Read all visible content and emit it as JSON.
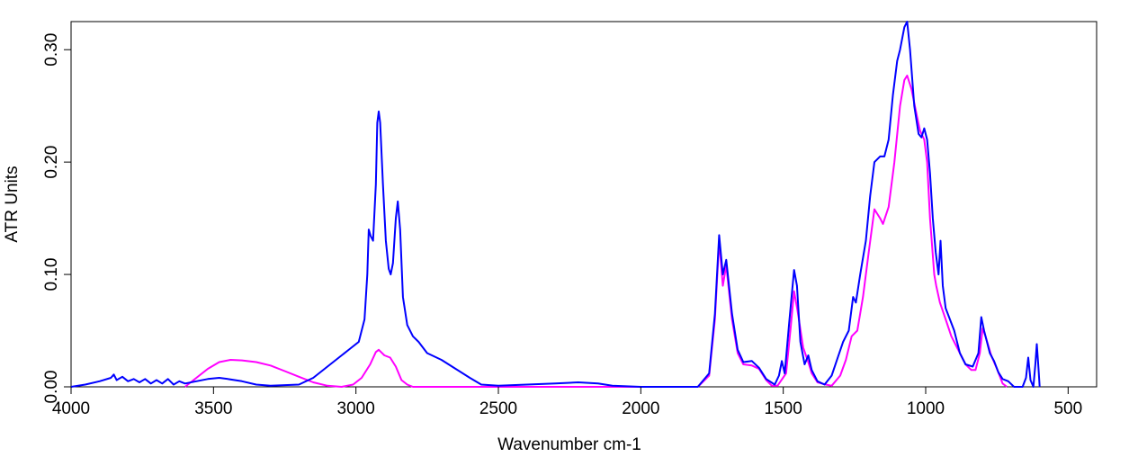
{
  "chart_data": {
    "type": "line",
    "title": "",
    "xlabel": "Wavenumber cm-1",
    "ylabel": "ATR Units",
    "xlim": [
      4000,
      400
    ],
    "ylim": [
      0.0,
      0.325
    ],
    "x_reversed": true,
    "grid": false,
    "xticks": [
      4000,
      3500,
      3000,
      2500,
      2000,
      1500,
      1000,
      500
    ],
    "xtick_labels": [
      "4000",
      "3500",
      "3000",
      "2500",
      "2000",
      "1500",
      "1000",
      "500"
    ],
    "yticks": [
      0.0,
      0.1,
      0.2,
      0.3
    ],
    "ytick_labels": [
      "0.00",
      "0.10",
      "0.20",
      "0.30"
    ],
    "series": [
      {
        "color": "#ff00ff",
        "points": [
          [
            3600,
            0.0
          ],
          [
            3560,
            0.008
          ],
          [
            3520,
            0.016
          ],
          [
            3480,
            0.022
          ],
          [
            3440,
            0.024
          ],
          [
            3400,
            0.0235
          ],
          [
            3350,
            0.022
          ],
          [
            3300,
            0.019
          ],
          [
            3250,
            0.014
          ],
          [
            3200,
            0.009
          ],
          [
            3150,
            0.004
          ],
          [
            3100,
            0.001
          ],
          [
            3050,
            0.0
          ],
          [
            3010,
            0.002
          ],
          [
            2980,
            0.008
          ],
          [
            2950,
            0.02
          ],
          [
            2930,
            0.031
          ],
          [
            2920,
            0.033
          ],
          [
            2900,
            0.028
          ],
          [
            2880,
            0.026
          ],
          [
            2860,
            0.018
          ],
          [
            2840,
            0.006
          ],
          [
            2820,
            0.002
          ],
          [
            2800,
            0.0
          ],
          [
            1800,
            0.0
          ],
          [
            1760,
            0.01
          ],
          [
            1740,
            0.06
          ],
          [
            1725,
            0.13
          ],
          [
            1712,
            0.09
          ],
          [
            1700,
            0.108
          ],
          [
            1680,
            0.06
          ],
          [
            1660,
            0.03
          ],
          [
            1640,
            0.02
          ],
          [
            1610,
            0.019
          ],
          [
            1585,
            0.016
          ],
          [
            1560,
            0.006
          ],
          [
            1540,
            0.001
          ],
          [
            1520,
            0.001
          ],
          [
            1490,
            0.012
          ],
          [
            1475,
            0.05
          ],
          [
            1462,
            0.085
          ],
          [
            1450,
            0.068
          ],
          [
            1430,
            0.035
          ],
          [
            1412,
            0.022
          ],
          [
            1400,
            0.012
          ],
          [
            1380,
            0.004
          ],
          [
            1350,
            0.002
          ],
          [
            1330,
            0.001
          ],
          [
            1300,
            0.01
          ],
          [
            1280,
            0.024
          ],
          [
            1260,
            0.045
          ],
          [
            1240,
            0.05
          ],
          [
            1220,
            0.08
          ],
          [
            1200,
            0.12
          ],
          [
            1180,
            0.158
          ],
          [
            1160,
            0.15
          ],
          [
            1150,
            0.145
          ],
          [
            1130,
            0.16
          ],
          [
            1110,
            0.2
          ],
          [
            1090,
            0.25
          ],
          [
            1075,
            0.273
          ],
          [
            1065,
            0.277
          ],
          [
            1050,
            0.265
          ],
          [
            1030,
            0.24
          ],
          [
            1020,
            0.228
          ],
          [
            1005,
            0.22
          ],
          [
            995,
            0.2
          ],
          [
            985,
            0.15
          ],
          [
            970,
            0.1
          ],
          [
            963,
            0.09
          ],
          [
            950,
            0.075
          ],
          [
            930,
            0.06
          ],
          [
            910,
            0.045
          ],
          [
            880,
            0.03
          ],
          [
            860,
            0.02
          ],
          [
            840,
            0.015
          ],
          [
            825,
            0.015
          ],
          [
            810,
            0.03
          ],
          [
            800,
            0.052
          ],
          [
            790,
            0.045
          ],
          [
            770,
            0.028
          ],
          [
            750,
            0.016
          ],
          [
            730,
            0.003
          ],
          [
            715,
            0.0
          ]
        ]
      },
      {
        "color": "#0000ff",
        "points": [
          [
            4000,
            0.0
          ],
          [
            3950,
            0.002
          ],
          [
            3900,
            0.005
          ],
          [
            3860,
            0.008
          ],
          [
            3850,
            0.011
          ],
          [
            3840,
            0.006
          ],
          [
            3820,
            0.009
          ],
          [
            3800,
            0.005
          ],
          [
            3780,
            0.007
          ],
          [
            3760,
            0.004
          ],
          [
            3740,
            0.007
          ],
          [
            3720,
            0.003
          ],
          [
            3700,
            0.006
          ],
          [
            3680,
            0.003
          ],
          [
            3660,
            0.007
          ],
          [
            3640,
            0.002
          ],
          [
            3620,
            0.005
          ],
          [
            3600,
            0.003
          ],
          [
            3560,
            0.005
          ],
          [
            3520,
            0.007
          ],
          [
            3480,
            0.008
          ],
          [
            3450,
            0.007
          ],
          [
            3400,
            0.005
          ],
          [
            3350,
            0.002
          ],
          [
            3300,
            0.001
          ],
          [
            3200,
            0.002
          ],
          [
            3150,
            0.008
          ],
          [
            3100,
            0.018
          ],
          [
            3050,
            0.028
          ],
          [
            3020,
            0.034
          ],
          [
            2990,
            0.04
          ],
          [
            2970,
            0.06
          ],
          [
            2960,
            0.1
          ],
          [
            2955,
            0.14
          ],
          [
            2948,
            0.134
          ],
          [
            2940,
            0.13
          ],
          [
            2930,
            0.18
          ],
          [
            2925,
            0.235
          ],
          [
            2920,
            0.245
          ],
          [
            2915,
            0.235
          ],
          [
            2905,
            0.18
          ],
          [
            2895,
            0.13
          ],
          [
            2885,
            0.105
          ],
          [
            2878,
            0.1
          ],
          [
            2870,
            0.11
          ],
          [
            2860,
            0.15
          ],
          [
            2853,
            0.165
          ],
          [
            2845,
            0.14
          ],
          [
            2835,
            0.08
          ],
          [
            2820,
            0.055
          ],
          [
            2800,
            0.045
          ],
          [
            2780,
            0.04
          ],
          [
            2750,
            0.03
          ],
          [
            2700,
            0.024
          ],
          [
            2650,
            0.016
          ],
          [
            2600,
            0.008
          ],
          [
            2560,
            0.002
          ],
          [
            2500,
            0.001
          ],
          [
            2400,
            0.002
          ],
          [
            2300,
            0.003
          ],
          [
            2220,
            0.004
          ],
          [
            2150,
            0.003
          ],
          [
            2100,
            0.001
          ],
          [
            2000,
            0.0
          ],
          [
            1800,
            0.0
          ],
          [
            1760,
            0.012
          ],
          [
            1740,
            0.065
          ],
          [
            1725,
            0.135
          ],
          [
            1712,
            0.1
          ],
          [
            1700,
            0.113
          ],
          [
            1680,
            0.065
          ],
          [
            1660,
            0.033
          ],
          [
            1640,
            0.022
          ],
          [
            1610,
            0.023
          ],
          [
            1585,
            0.017
          ],
          [
            1560,
            0.007
          ],
          [
            1530,
            0.002
          ],
          [
            1515,
            0.01
          ],
          [
            1505,
            0.023
          ],
          [
            1495,
            0.012
          ],
          [
            1478,
            0.06
          ],
          [
            1462,
            0.104
          ],
          [
            1452,
            0.09
          ],
          [
            1440,
            0.04
          ],
          [
            1425,
            0.02
          ],
          [
            1412,
            0.028
          ],
          [
            1400,
            0.015
          ],
          [
            1380,
            0.005
          ],
          [
            1355,
            0.002
          ],
          [
            1330,
            0.01
          ],
          [
            1310,
            0.025
          ],
          [
            1290,
            0.04
          ],
          [
            1270,
            0.05
          ],
          [
            1255,
            0.08
          ],
          [
            1245,
            0.075
          ],
          [
            1230,
            0.1
          ],
          [
            1210,
            0.13
          ],
          [
            1195,
            0.17
          ],
          [
            1180,
            0.2
          ],
          [
            1160,
            0.205
          ],
          [
            1145,
            0.205
          ],
          [
            1130,
            0.22
          ],
          [
            1115,
            0.26
          ],
          [
            1100,
            0.29
          ],
          [
            1090,
            0.3
          ],
          [
            1075,
            0.32
          ],
          [
            1065,
            0.325
          ],
          [
            1055,
            0.3
          ],
          [
            1040,
            0.25
          ],
          [
            1025,
            0.225
          ],
          [
            1015,
            0.222
          ],
          [
            1005,
            0.23
          ],
          [
            995,
            0.22
          ],
          [
            985,
            0.19
          ],
          [
            975,
            0.15
          ],
          [
            965,
            0.12
          ],
          [
            955,
            0.1
          ],
          [
            948,
            0.13
          ],
          [
            940,
            0.09
          ],
          [
            930,
            0.07
          ],
          [
            900,
            0.05
          ],
          [
            880,
            0.03
          ],
          [
            860,
            0.02
          ],
          [
            835,
            0.018
          ],
          [
            815,
            0.03
          ],
          [
            805,
            0.062
          ],
          [
            795,
            0.05
          ],
          [
            775,
            0.03
          ],
          [
            760,
            0.023
          ],
          [
            745,
            0.013
          ],
          [
            730,
            0.007
          ],
          [
            710,
            0.005
          ],
          [
            690,
            0.0
          ],
          [
            660,
            0.0
          ],
          [
            648,
            0.008
          ],
          [
            640,
            0.026
          ],
          [
            632,
            0.006
          ],
          [
            622,
            0.0
          ],
          [
            615,
            0.02
          ],
          [
            610,
            0.038
          ],
          [
            605,
            0.02
          ],
          [
            600,
            0.0
          ]
        ]
      }
    ]
  }
}
